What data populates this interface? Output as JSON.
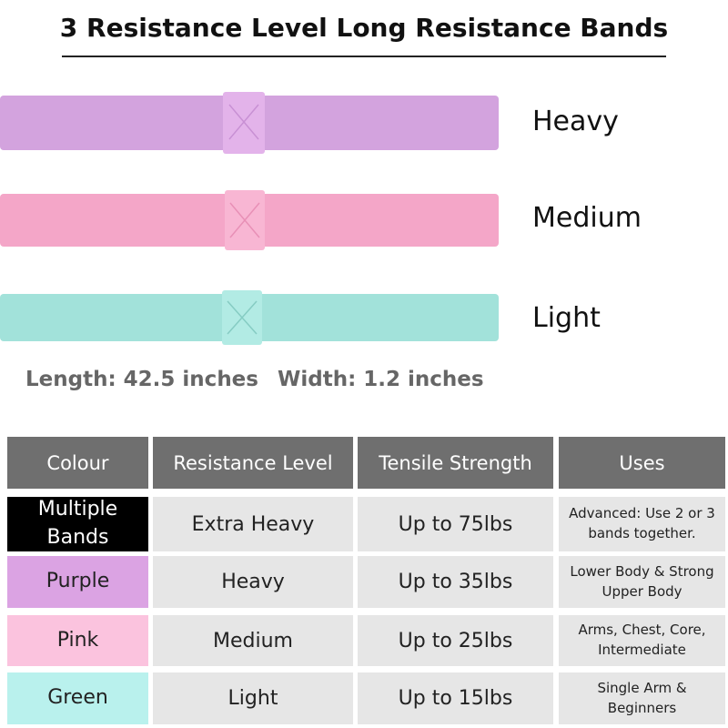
{
  "header": {
    "title": "3 Resistance Level Long Resistance Bands"
  },
  "bands": [
    {
      "label": "Heavy"
    },
    {
      "label": "Medium"
    },
    {
      "label": "Light"
    }
  ],
  "specs": {
    "length": "Length: 42.5 inches",
    "width": "Width: 1.2 inches"
  },
  "table": {
    "columns": [
      "Colour",
      "Resistance Level",
      "Tensile Strength",
      "Uses"
    ],
    "rows": [
      [
        "Multiple Bands",
        "Extra Heavy",
        "Up to 75lbs",
        "Advanced: Use 2 or 3 bands together."
      ],
      [
        "Purple",
        "Heavy",
        "Up to 35lbs",
        "Lower Body & Strong Upper Body"
      ],
      [
        "Pink",
        "Medium",
        "Up to 25lbs",
        "Arms, Chest, Core, Intermediate"
      ],
      [
        "Green",
        "Light",
        "Up to 15lbs",
        "Single Arm & Beginners"
      ]
    ]
  }
}
